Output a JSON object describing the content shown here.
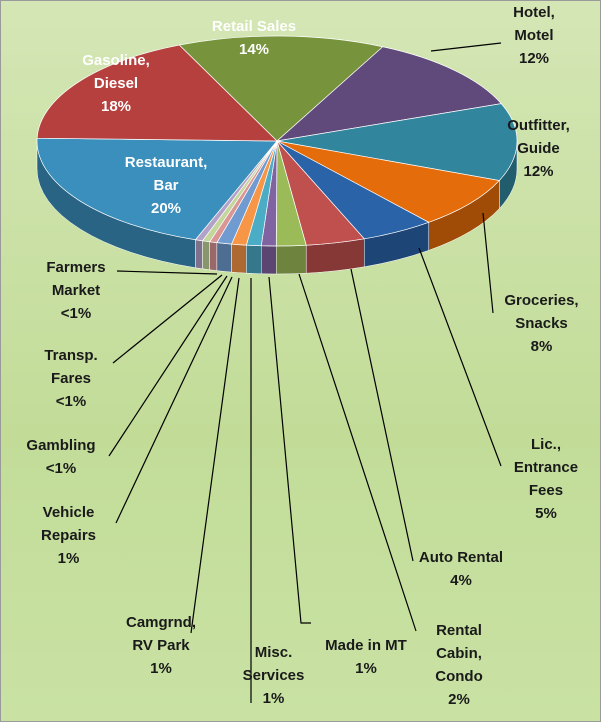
{
  "chart_data": {
    "type": "pie3d",
    "categories": [
      "Retail Sales",
      "Hotel, Motel",
      "Outfitter, Guide",
      "Groceries, Snacks",
      "Lic., Entrance Fees",
      "Auto Rental",
      "Rental Cabin, Condo",
      "Made in MT",
      "Misc. Services",
      "Camgrnd, RV Park",
      "Vehicle Repairs",
      "Gambling",
      "Transp. Fares",
      "Farmers Market",
      "Restaurant, Bar",
      "Gasoline, Diesel"
    ],
    "values": [
      14,
      12,
      12,
      8,
      5,
      4,
      2,
      1,
      1,
      1,
      1,
      0.5,
      0.5,
      0.5,
      20,
      18
    ],
    "value_labels": [
      "14%",
      "12%",
      "12%",
      "8%",
      "5%",
      "4%",
      "2%",
      "1%",
      "1%",
      "1%",
      "1%",
      "<1%",
      "<1%",
      "<1%",
      "20%",
      "18%"
    ],
    "colors": [
      "#77933c",
      "#604a7b",
      "#31859c",
      "#e46c0a",
      "#2a63a8",
      "#c0504d",
      "#9bbb59",
      "#8064a2",
      "#4bacc6",
      "#f79646",
      "#6f9bd0",
      "#d99694",
      "#c3d69b",
      "#b3a2c7",
      "#3a8fbc",
      "#b5403e"
    ]
  }
}
